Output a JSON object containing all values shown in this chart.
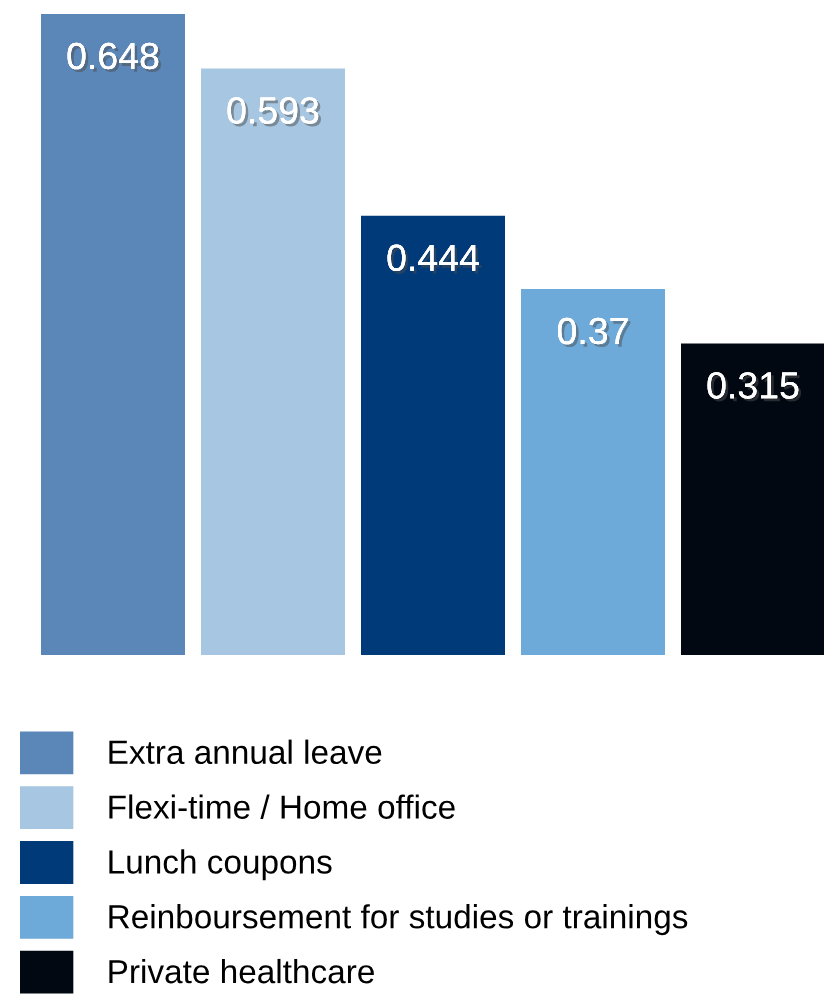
{
  "chart_data": {
    "type": "bar",
    "categories": [
      null
    ],
    "series": [
      {
        "name": "Extra annual leave",
        "color": "#5b87b8",
        "values": [
          0.648
        ]
      },
      {
        "name": "Flexi-time / Home office",
        "color": "#a6c6e1",
        "values": [
          0.593
        ]
      },
      {
        "name": "Lunch coupons",
        "color": "#003a78",
        "values": [
          0.444
        ]
      },
      {
        "name": "Reinboursement for studies or trainings",
        "color": "#6eaad9",
        "values": [
          0.37
        ]
      },
      {
        "name": "Private healthcare",
        "color": "#020812",
        "values": [
          0.315
        ]
      }
    ],
    "data_labels": true,
    "legend": "bottom",
    "tick_labels": false,
    "grid": false
  }
}
